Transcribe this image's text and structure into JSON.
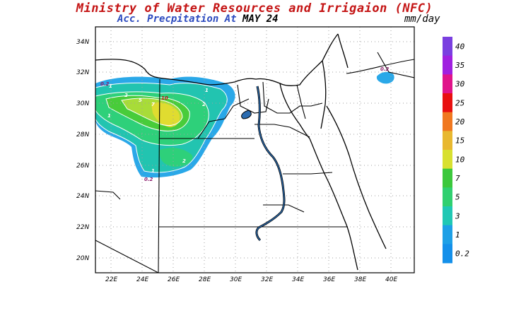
{
  "header": {
    "title": "Ministry of Water Resources and Irrigaion (NFC)",
    "subtitle_prefix": "Acc. Precpitation  At ",
    "date": "MAY 24",
    "unit": "mm/day"
  },
  "map": {
    "lat_labels": [
      "34N",
      "32N",
      "30N",
      "28N",
      "26N",
      "24N",
      "22N",
      "20N"
    ],
    "lon_labels": [
      "22E",
      "24E",
      "26E",
      "28E",
      "30E",
      "32E",
      "34E",
      "36E",
      "38E",
      "40E"
    ],
    "contour_labels": [
      "0.2",
      "1",
      "2",
      "5",
      "7",
      "10",
      "1",
      "2",
      "1",
      "2",
      "1",
      "1",
      "0.2",
      "0.2"
    ]
  },
  "colorbar": {
    "levels": [
      "40",
      "35",
      "30",
      "25",
      "20",
      "15",
      "10",
      "7",
      "5",
      "3",
      "1",
      "0.2"
    ],
    "colors": [
      "#7a3fe0",
      "#a020e0",
      "#e0148a",
      "#e81010",
      "#f07820",
      "#e8b830",
      "#d8e030",
      "#3cc83c",
      "#30d070",
      "#20c8b4",
      "#1ea0e6",
      "#1490ea"
    ]
  }
}
